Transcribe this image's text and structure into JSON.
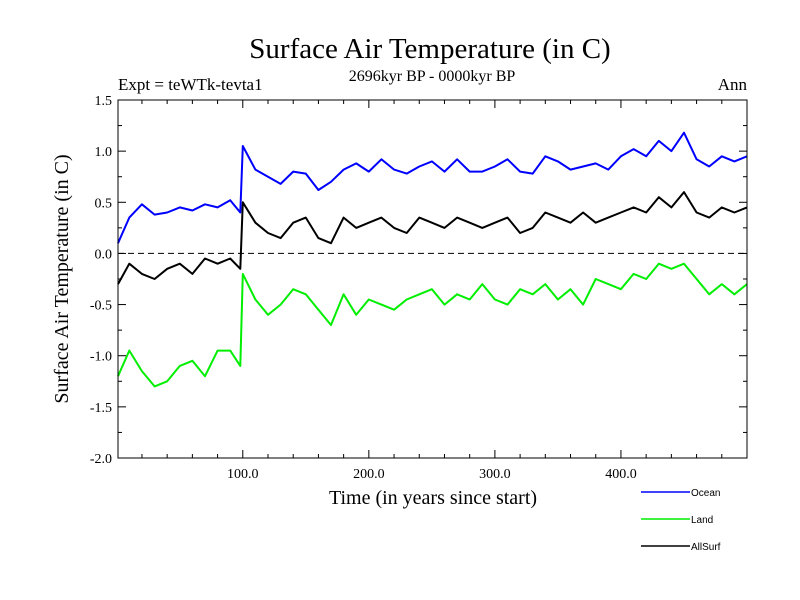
{
  "chart_data": {
    "type": "line",
    "title": "Surface Air Temperature (in C)",
    "subtitle": "2696kyr BP - 0000kyr BP",
    "left_label": "Expt = teWTk-tevta1",
    "right_label": "Ann",
    "xlabel": "Time (in years since start)",
    "ylabel": "Surface Air Temperature (in C)",
    "xlim": [
      1,
      500
    ],
    "ylim": [
      -2.0,
      1.5
    ],
    "x_ticks": [
      100,
      200,
      300,
      400
    ],
    "x_tick_labels": [
      "100.0",
      "200.0",
      "300.0",
      "400.0"
    ],
    "y_ticks": [
      1.5,
      1.0,
      0.5,
      0.0,
      -0.5,
      -1.0,
      -1.5,
      -2.0
    ],
    "y_tick_labels": [
      "1.5",
      "1.0",
      "0.5",
      "0.0",
      "-0.5",
      "-1.0",
      "-1.5",
      "-2.0"
    ],
    "zero_line": 0.0,
    "legend_position": "bottom-right",
    "series": [
      {
        "name": "Ocean",
        "color": "#0000ff",
        "x": [
          1,
          10,
          20,
          30,
          40,
          50,
          60,
          70,
          80,
          90,
          98,
          100,
          110,
          120,
          130,
          140,
          150,
          160,
          170,
          180,
          190,
          200,
          210,
          220,
          230,
          240,
          250,
          260,
          270,
          280,
          290,
          300,
          310,
          320,
          330,
          340,
          350,
          360,
          370,
          380,
          390,
          400,
          410,
          420,
          430,
          440,
          450,
          460,
          470,
          480,
          490,
          500
        ],
        "values": [
          0.1,
          0.35,
          0.48,
          0.38,
          0.4,
          0.45,
          0.42,
          0.48,
          0.45,
          0.52,
          0.4,
          1.05,
          0.82,
          0.75,
          0.68,
          0.8,
          0.78,
          0.62,
          0.7,
          0.82,
          0.88,
          0.8,
          0.92,
          0.82,
          0.78,
          0.85,
          0.9,
          0.8,
          0.92,
          0.8,
          0.8,
          0.85,
          0.92,
          0.8,
          0.78,
          0.95,
          0.9,
          0.82,
          0.85,
          0.88,
          0.82,
          0.95,
          1.02,
          0.95,
          1.1,
          1.0,
          1.18,
          0.92,
          0.85,
          0.95,
          0.9,
          0.95
        ]
      },
      {
        "name": "Land",
        "color": "#00ee00",
        "x": [
          1,
          10,
          20,
          30,
          40,
          50,
          60,
          70,
          80,
          90,
          98,
          100,
          110,
          120,
          130,
          140,
          150,
          160,
          170,
          180,
          190,
          200,
          210,
          220,
          230,
          240,
          250,
          260,
          270,
          280,
          290,
          300,
          310,
          320,
          330,
          340,
          350,
          360,
          370,
          380,
          390,
          400,
          410,
          420,
          430,
          440,
          450,
          460,
          470,
          480,
          490,
          500
        ],
        "values": [
          -1.2,
          -0.95,
          -1.15,
          -1.3,
          -1.25,
          -1.1,
          -1.05,
          -1.2,
          -0.95,
          -0.95,
          -1.1,
          -0.2,
          -0.45,
          -0.6,
          -0.5,
          -0.35,
          -0.4,
          -0.55,
          -0.7,
          -0.4,
          -0.6,
          -0.45,
          -0.5,
          -0.55,
          -0.45,
          -0.4,
          -0.35,
          -0.5,
          -0.4,
          -0.45,
          -0.3,
          -0.45,
          -0.5,
          -0.35,
          -0.4,
          -0.3,
          -0.45,
          -0.35,
          -0.5,
          -0.25,
          -0.3,
          -0.35,
          -0.2,
          -0.25,
          -0.1,
          -0.15,
          -0.1,
          -0.25,
          -0.4,
          -0.3,
          -0.4,
          -0.3
        ]
      },
      {
        "name": "AllSurf",
        "color": "#000000",
        "x": [
          1,
          10,
          20,
          30,
          40,
          50,
          60,
          70,
          80,
          90,
          98,
          100,
          110,
          120,
          130,
          140,
          150,
          160,
          170,
          180,
          190,
          200,
          210,
          220,
          230,
          240,
          250,
          260,
          270,
          280,
          290,
          300,
          310,
          320,
          330,
          340,
          350,
          360,
          370,
          380,
          390,
          400,
          410,
          420,
          430,
          440,
          450,
          460,
          470,
          480,
          490,
          500
        ],
        "values": [
          -0.3,
          -0.1,
          -0.2,
          -0.25,
          -0.15,
          -0.1,
          -0.2,
          -0.05,
          -0.1,
          -0.05,
          -0.15,
          0.5,
          0.3,
          0.2,
          0.15,
          0.3,
          0.35,
          0.15,
          0.1,
          0.35,
          0.25,
          0.3,
          0.35,
          0.25,
          0.2,
          0.35,
          0.3,
          0.25,
          0.35,
          0.3,
          0.25,
          0.3,
          0.35,
          0.2,
          0.25,
          0.4,
          0.35,
          0.3,
          0.4,
          0.3,
          0.35,
          0.4,
          0.45,
          0.4,
          0.55,
          0.45,
          0.6,
          0.4,
          0.35,
          0.45,
          0.4,
          0.45
        ]
      }
    ]
  }
}
